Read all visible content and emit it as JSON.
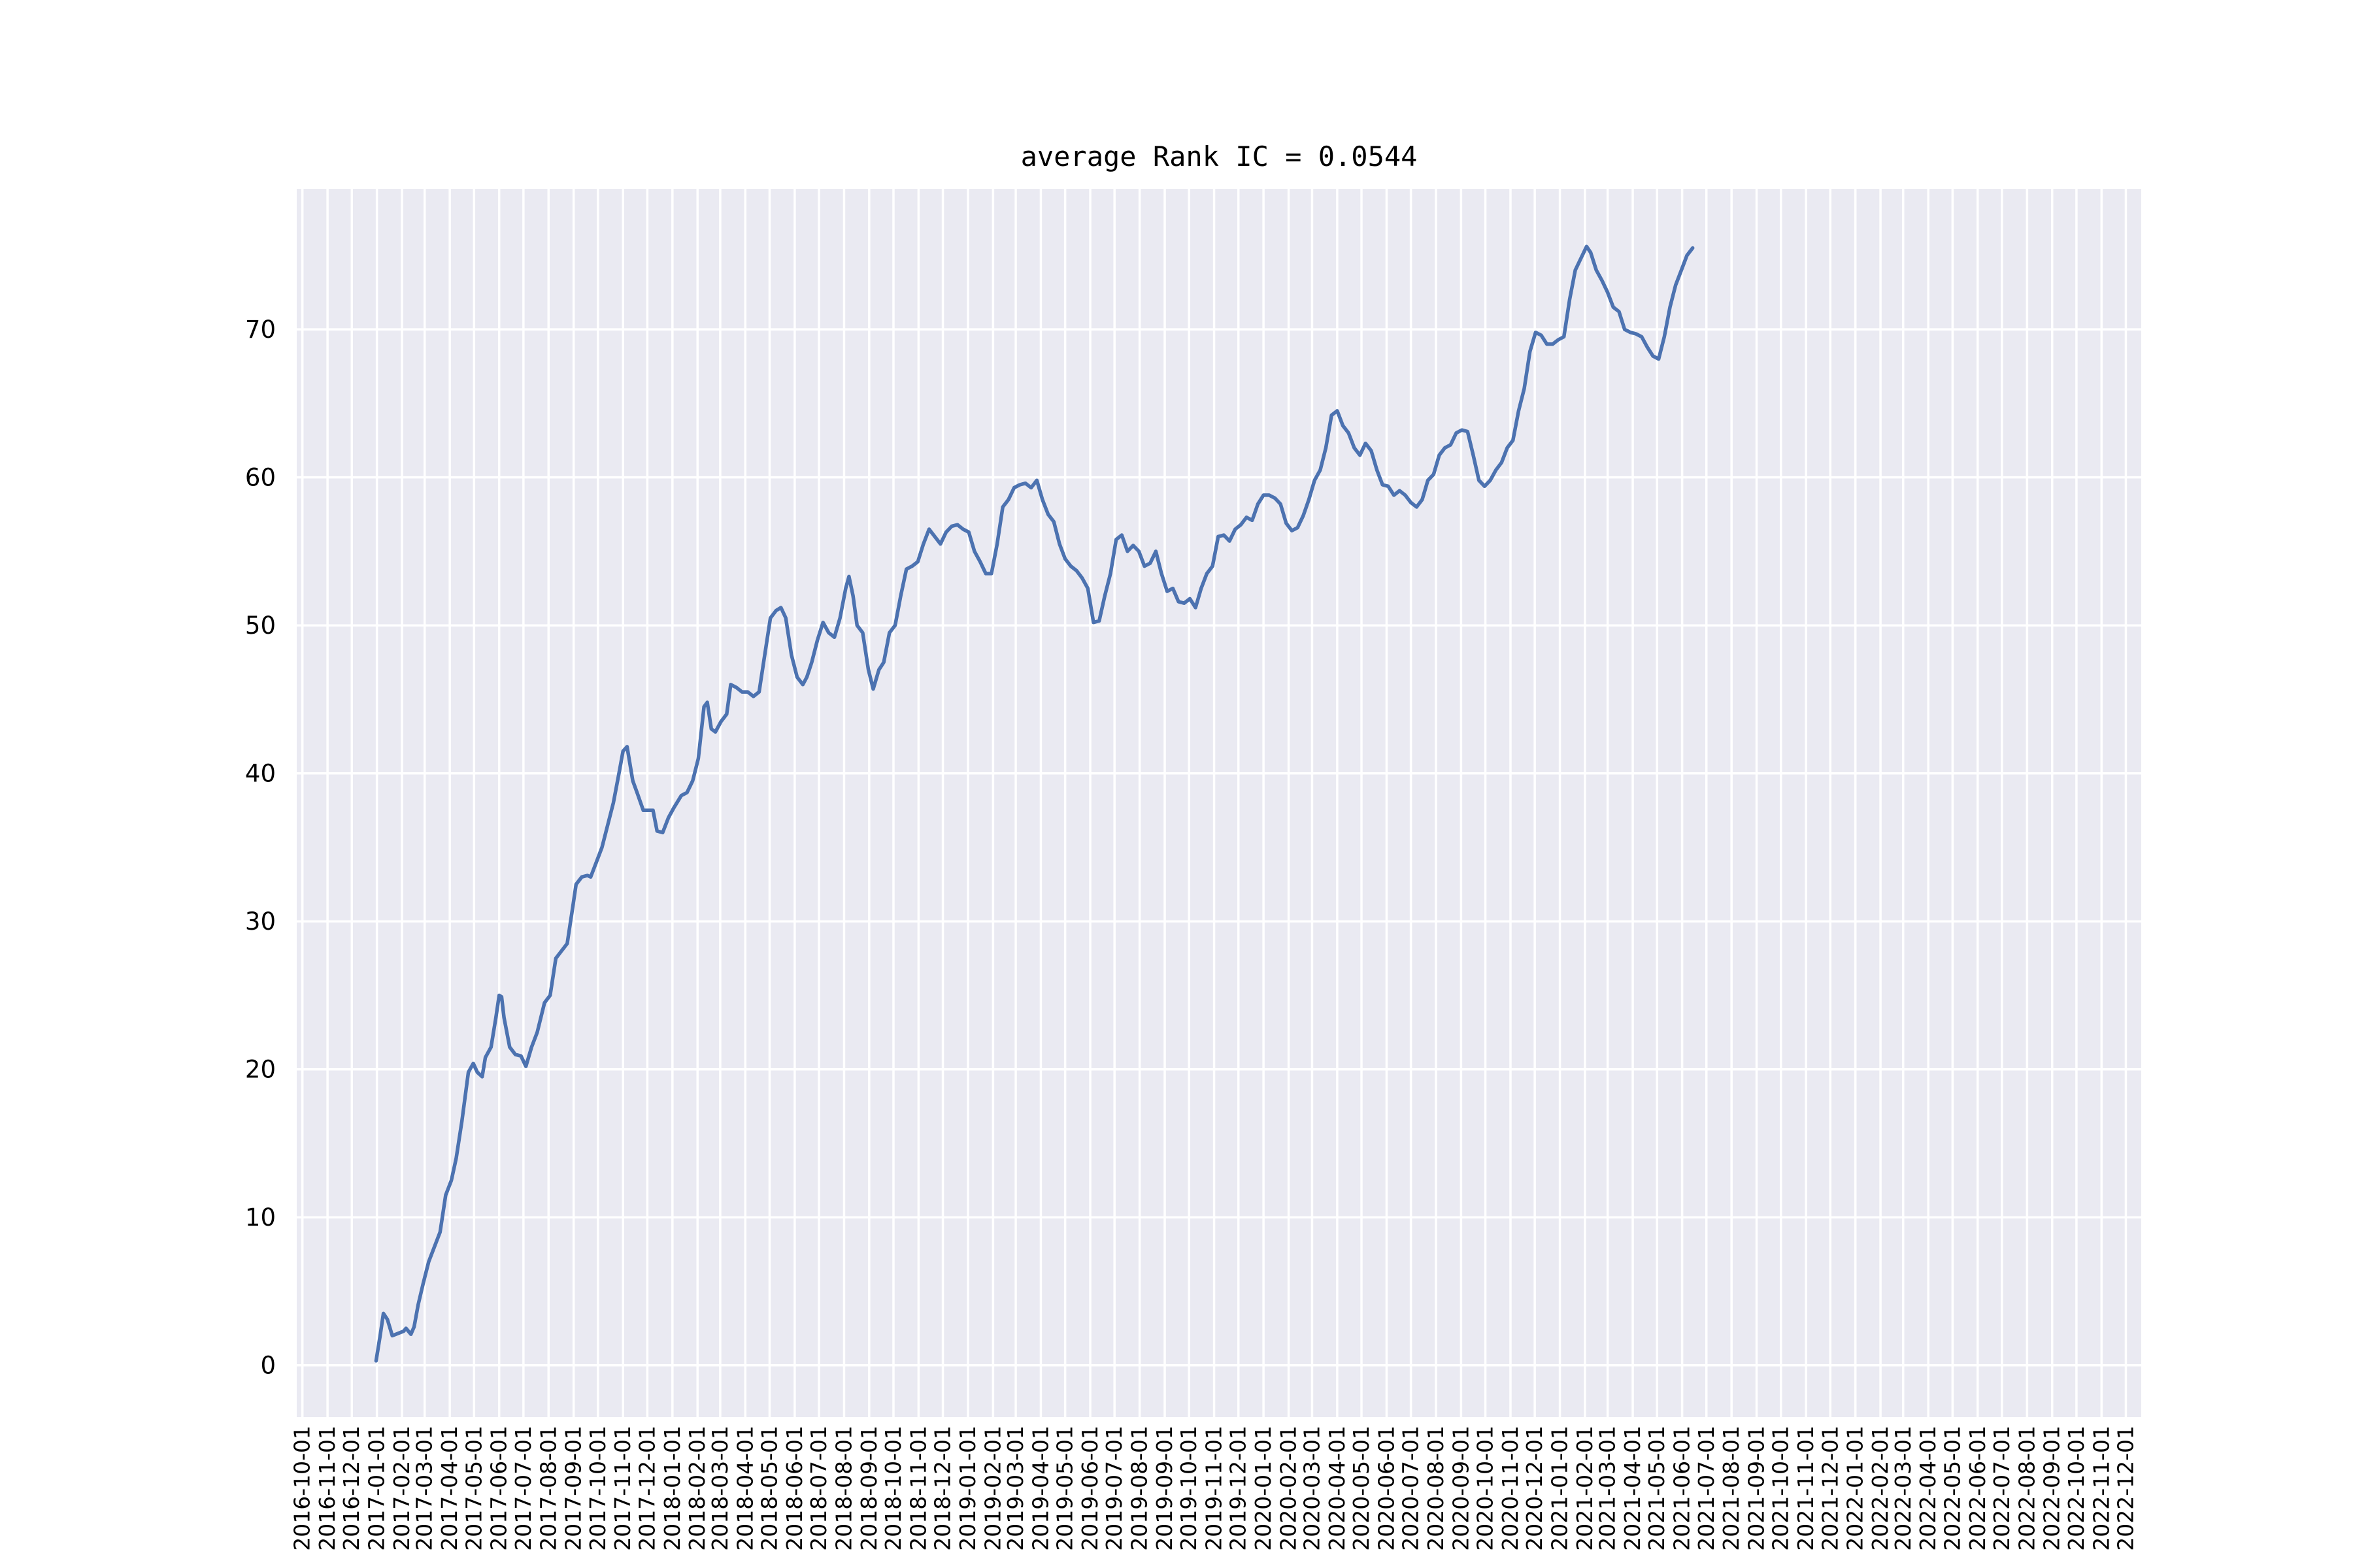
{
  "chart_data": {
    "type": "line",
    "title": "average Rank IC = 0.0544",
    "xlabel": "",
    "ylabel": "",
    "grid": true,
    "background": "#EAEAF2",
    "grid_color": "#FFFFFF",
    "line_color": "#4C72B0",
    "xlim": [
      "2016-09-24",
      "2022-12-20"
    ],
    "ylim": [
      -3.5,
      79.5
    ],
    "yticks": [
      0,
      10,
      20,
      30,
      40,
      50,
      60,
      70
    ],
    "xticks": [
      "2016-10-01",
      "2016-11-01",
      "2016-12-01",
      "2017-01-01",
      "2017-02-01",
      "2017-03-01",
      "2017-04-01",
      "2017-05-01",
      "2017-06-01",
      "2017-07-01",
      "2017-08-01",
      "2017-09-01",
      "2017-10-01",
      "2017-11-01",
      "2017-12-01",
      "2018-01-01",
      "2018-02-01",
      "2018-03-01",
      "2018-04-01",
      "2018-05-01",
      "2018-06-01",
      "2018-07-01",
      "2018-08-01",
      "2018-09-01",
      "2018-10-01",
      "2018-11-01",
      "2018-12-01",
      "2019-01-01",
      "2019-02-01",
      "2019-03-01",
      "2019-04-01",
      "2019-05-01",
      "2019-06-01",
      "2019-07-01",
      "2019-08-01",
      "2019-09-01",
      "2019-10-01",
      "2019-11-01",
      "2019-12-01",
      "2020-01-01",
      "2020-02-01",
      "2020-03-01",
      "2020-04-01",
      "2020-05-01",
      "2020-06-01",
      "2020-07-01",
      "2020-08-01",
      "2020-09-01",
      "2020-10-01",
      "2020-11-01",
      "2020-12-01",
      "2021-01-01",
      "2021-02-01",
      "2021-03-01",
      "2021-04-01",
      "2021-05-01",
      "2021-06-01",
      "2021-07-01",
      "2021-08-01",
      "2021-09-01",
      "2021-10-01",
      "2021-11-01",
      "2021-12-01",
      "2022-01-01",
      "2022-02-01",
      "2022-03-01",
      "2022-04-01",
      "2022-05-01",
      "2022-06-01",
      "2022-07-01",
      "2022-08-01",
      "2022-09-01",
      "2022-10-01",
      "2022-11-01",
      "2022-12-01"
    ],
    "series": [
      {
        "points": [
          [
            "2016-12-31",
            0.3
          ],
          [
            "2017-01-05",
            2.0
          ],
          [
            "2017-01-09",
            3.5
          ],
          [
            "2017-01-14",
            3.1
          ],
          [
            "2017-01-20",
            2.0
          ],
          [
            "2017-02-03",
            2.3
          ],
          [
            "2017-02-06",
            2.5
          ],
          [
            "2017-02-12",
            2.1
          ],
          [
            "2017-02-16",
            2.6
          ],
          [
            "2017-02-21",
            4.1
          ],
          [
            "2017-02-27",
            5.5
          ],
          [
            "2017-03-06",
            7.0
          ],
          [
            "2017-03-13",
            8.0
          ],
          [
            "2017-03-20",
            9.0
          ],
          [
            "2017-03-27",
            11.5
          ],
          [
            "2017-04-03",
            12.5
          ],
          [
            "2017-04-09",
            14.0
          ],
          [
            "2017-04-16",
            16.5
          ],
          [
            "2017-04-24",
            19.8
          ],
          [
            "2017-04-30",
            20.4
          ],
          [
            "2017-05-05",
            19.8
          ],
          [
            "2017-05-11",
            19.5
          ],
          [
            "2017-05-15",
            20.8
          ],
          [
            "2017-05-22",
            21.5
          ],
          [
            "2017-05-28",
            23.5
          ],
          [
            "2017-06-01",
            25.0
          ],
          [
            "2017-06-04",
            24.9
          ],
          [
            "2017-06-07",
            23.5
          ],
          [
            "2017-06-14",
            21.5
          ],
          [
            "2017-06-21",
            21.0
          ],
          [
            "2017-06-28",
            20.9
          ],
          [
            "2017-07-04",
            20.2
          ],
          [
            "2017-07-11",
            21.5
          ],
          [
            "2017-07-18",
            22.5
          ],
          [
            "2017-07-27",
            24.5
          ],
          [
            "2017-08-03",
            25.0
          ],
          [
            "2017-08-10",
            27.5
          ],
          [
            "2017-08-17",
            28.0
          ],
          [
            "2017-08-24",
            28.5
          ],
          [
            "2017-08-31",
            31.0
          ],
          [
            "2017-09-04",
            32.5
          ],
          [
            "2017-09-11",
            33.0
          ],
          [
            "2017-09-18",
            33.1
          ],
          [
            "2017-09-22",
            33.0
          ],
          [
            "2017-09-29",
            34.0
          ],
          [
            "2017-10-06",
            35.0
          ],
          [
            "2017-10-13",
            36.5
          ],
          [
            "2017-10-20",
            38.0
          ],
          [
            "2017-10-27",
            40.0
          ],
          [
            "2017-11-01",
            41.5
          ],
          [
            "2017-11-06",
            41.8
          ],
          [
            "2017-11-13",
            39.5
          ],
          [
            "2017-11-19",
            38.6
          ],
          [
            "2017-11-26",
            37.5
          ],
          [
            "2017-12-02",
            37.5
          ],
          [
            "2017-12-08",
            37.5
          ],
          [
            "2017-12-13",
            36.1
          ],
          [
            "2017-12-20",
            36.0
          ],
          [
            "2017-12-27",
            37.0
          ],
          [
            "2018-01-03",
            37.7
          ],
          [
            "2018-01-12",
            38.5
          ],
          [
            "2018-01-19",
            38.7
          ],
          [
            "2018-01-26",
            39.5
          ],
          [
            "2018-02-02",
            41.0
          ],
          [
            "2018-02-09",
            44.5
          ],
          [
            "2018-02-13",
            44.8
          ],
          [
            "2018-02-18",
            43.0
          ],
          [
            "2018-02-23",
            42.8
          ],
          [
            "2018-03-02",
            43.5
          ],
          [
            "2018-03-09",
            44.0
          ],
          [
            "2018-03-14",
            46.0
          ],
          [
            "2018-03-21",
            45.8
          ],
          [
            "2018-03-28",
            45.5
          ],
          [
            "2018-04-04",
            45.5
          ],
          [
            "2018-04-11",
            45.2
          ],
          [
            "2018-04-18",
            45.5
          ],
          [
            "2018-04-25",
            48.0
          ],
          [
            "2018-05-02",
            50.5
          ],
          [
            "2018-05-09",
            51.0
          ],
          [
            "2018-05-15",
            51.2
          ],
          [
            "2018-05-21",
            50.5
          ],
          [
            "2018-05-28",
            48.0
          ],
          [
            "2018-06-04",
            46.5
          ],
          [
            "2018-06-11",
            46.0
          ],
          [
            "2018-06-16",
            46.5
          ],
          [
            "2018-06-22",
            47.5
          ],
          [
            "2018-06-29",
            49.0
          ],
          [
            "2018-07-06",
            50.2
          ],
          [
            "2018-07-13",
            49.5
          ],
          [
            "2018-07-20",
            49.2
          ],
          [
            "2018-07-27",
            50.5
          ],
          [
            "2018-08-03",
            52.5
          ],
          [
            "2018-08-07",
            53.3
          ],
          [
            "2018-08-12",
            52.0
          ],
          [
            "2018-08-17",
            50.0
          ],
          [
            "2018-08-24",
            49.5
          ],
          [
            "2018-08-31",
            47.0
          ],
          [
            "2018-09-06",
            45.7
          ],
          [
            "2018-09-13",
            47.0
          ],
          [
            "2018-09-19",
            47.5
          ],
          [
            "2018-09-26",
            49.5
          ],
          [
            "2018-10-03",
            50.0
          ],
          [
            "2018-10-10",
            52.0
          ],
          [
            "2018-10-17",
            53.8
          ],
          [
            "2018-10-24",
            54.0
          ],
          [
            "2018-10-31",
            54.3
          ],
          [
            "2018-11-07",
            55.5
          ],
          [
            "2018-11-14",
            56.5
          ],
          [
            "2018-11-21",
            56.0
          ],
          [
            "2018-11-28",
            55.5
          ],
          [
            "2018-12-05",
            56.3
          ],
          [
            "2018-12-12",
            56.7
          ],
          [
            "2018-12-19",
            56.8
          ],
          [
            "2018-12-26",
            56.5
          ],
          [
            "2019-01-02",
            56.3
          ],
          [
            "2019-01-09",
            55.0
          ],
          [
            "2019-01-16",
            54.3
          ],
          [
            "2019-01-23",
            53.5
          ],
          [
            "2019-01-30",
            53.5
          ],
          [
            "2019-02-06",
            55.5
          ],
          [
            "2019-02-13",
            58.0
          ],
          [
            "2019-02-20",
            58.5
          ],
          [
            "2019-02-27",
            59.3
          ],
          [
            "2019-03-06",
            59.5
          ],
          [
            "2019-03-13",
            59.6
          ],
          [
            "2019-03-20",
            59.3
          ],
          [
            "2019-03-27",
            59.8
          ],
          [
            "2019-04-03",
            58.5
          ],
          [
            "2019-04-10",
            57.5
          ],
          [
            "2019-04-17",
            57.0
          ],
          [
            "2019-04-24",
            55.5
          ],
          [
            "2019-05-01",
            54.5
          ],
          [
            "2019-05-08",
            54.0
          ],
          [
            "2019-05-15",
            53.7
          ],
          [
            "2019-05-22",
            53.2
          ],
          [
            "2019-05-29",
            52.5
          ],
          [
            "2019-06-05",
            50.2
          ],
          [
            "2019-06-12",
            50.3
          ],
          [
            "2019-06-19",
            52.0
          ],
          [
            "2019-06-26",
            53.5
          ],
          [
            "2019-07-03",
            55.8
          ],
          [
            "2019-07-10",
            56.1
          ],
          [
            "2019-07-17",
            55.0
          ],
          [
            "2019-07-24",
            55.4
          ],
          [
            "2019-07-31",
            55.0
          ],
          [
            "2019-08-07",
            54.0
          ],
          [
            "2019-08-14",
            54.2
          ],
          [
            "2019-08-21",
            55.0
          ],
          [
            "2019-08-28",
            53.5
          ],
          [
            "2019-09-04",
            52.3
          ],
          [
            "2019-09-11",
            52.5
          ],
          [
            "2019-09-18",
            51.6
          ],
          [
            "2019-09-25",
            51.5
          ],
          [
            "2019-10-02",
            51.8
          ],
          [
            "2019-10-09",
            51.2
          ],
          [
            "2019-10-16",
            52.5
          ],
          [
            "2019-10-23",
            53.5
          ],
          [
            "2019-10-30",
            54.0
          ],
          [
            "2019-11-06",
            56.0
          ],
          [
            "2019-11-13",
            56.1
          ],
          [
            "2019-11-20",
            55.7
          ],
          [
            "2019-11-27",
            56.5
          ],
          [
            "2019-12-04",
            56.8
          ],
          [
            "2019-12-11",
            57.3
          ],
          [
            "2019-12-18",
            57.1
          ],
          [
            "2019-12-25",
            58.2
          ],
          [
            "2020-01-01",
            58.8
          ],
          [
            "2020-01-08",
            58.8
          ],
          [
            "2020-01-15",
            58.6
          ],
          [
            "2020-01-22",
            58.2
          ],
          [
            "2020-01-29",
            56.9
          ],
          [
            "2020-02-05",
            56.4
          ],
          [
            "2020-02-12",
            56.6
          ],
          [
            "2020-02-19",
            57.4
          ],
          [
            "2020-02-26",
            58.5
          ],
          [
            "2020-03-04",
            59.8
          ],
          [
            "2020-03-11",
            60.5
          ],
          [
            "2020-03-18",
            62.0
          ],
          [
            "2020-03-25",
            64.2
          ],
          [
            "2020-04-01",
            64.5
          ],
          [
            "2020-04-08",
            63.5
          ],
          [
            "2020-04-15",
            63.0
          ],
          [
            "2020-04-22",
            62.0
          ],
          [
            "2020-04-29",
            61.5
          ],
          [
            "2020-05-06",
            62.3
          ],
          [
            "2020-05-13",
            61.8
          ],
          [
            "2020-05-20",
            60.5
          ],
          [
            "2020-05-27",
            59.5
          ],
          [
            "2020-06-03",
            59.4
          ],
          [
            "2020-06-10",
            58.8
          ],
          [
            "2020-06-17",
            59.1
          ],
          [
            "2020-06-24",
            58.8
          ],
          [
            "2020-07-01",
            58.3
          ],
          [
            "2020-07-08",
            58.0
          ],
          [
            "2020-07-15",
            58.5
          ],
          [
            "2020-07-22",
            59.8
          ],
          [
            "2020-07-29",
            60.2
          ],
          [
            "2020-08-05",
            61.5
          ],
          [
            "2020-08-12",
            62.0
          ],
          [
            "2020-08-19",
            62.2
          ],
          [
            "2020-08-26",
            63.0
          ],
          [
            "2020-09-02",
            63.2
          ],
          [
            "2020-09-09",
            63.1
          ],
          [
            "2020-09-16",
            61.5
          ],
          [
            "2020-09-23",
            59.8
          ],
          [
            "2020-09-30",
            59.4
          ],
          [
            "2020-10-07",
            59.8
          ],
          [
            "2020-10-14",
            60.5
          ],
          [
            "2020-10-21",
            61.0
          ],
          [
            "2020-10-28",
            62.0
          ],
          [
            "2020-11-04",
            62.5
          ],
          [
            "2020-11-11",
            64.5
          ],
          [
            "2020-11-18",
            66.0
          ],
          [
            "2020-11-25",
            68.5
          ],
          [
            "2020-12-02",
            69.8
          ],
          [
            "2020-12-09",
            69.6
          ],
          [
            "2020-12-16",
            69.0
          ],
          [
            "2020-12-23",
            69.0
          ],
          [
            "2020-12-30",
            69.3
          ],
          [
            "2021-01-06",
            69.5
          ],
          [
            "2021-01-13",
            72.0
          ],
          [
            "2021-01-20",
            74.0
          ],
          [
            "2021-01-27",
            74.8
          ],
          [
            "2021-02-03",
            75.6
          ],
          [
            "2021-02-08",
            75.2
          ],
          [
            "2021-02-15",
            74.0
          ],
          [
            "2021-02-22",
            73.3
          ],
          [
            "2021-03-01",
            72.5
          ],
          [
            "2021-03-08",
            71.5
          ],
          [
            "2021-03-15",
            71.2
          ],
          [
            "2021-03-22",
            70.0
          ],
          [
            "2021-03-29",
            69.8
          ],
          [
            "2021-04-05",
            69.7
          ],
          [
            "2021-04-12",
            69.5
          ],
          [
            "2021-04-19",
            68.8
          ],
          [
            "2021-04-26",
            68.2
          ],
          [
            "2021-05-03",
            68.0
          ],
          [
            "2021-05-10",
            69.5
          ],
          [
            "2021-05-17",
            71.5
          ],
          [
            "2021-05-24",
            73.0
          ],
          [
            "2021-05-31",
            74.0
          ],
          [
            "2021-06-07",
            75.0
          ],
          [
            "2021-06-14",
            75.5
          ]
        ]
      }
    ]
  }
}
